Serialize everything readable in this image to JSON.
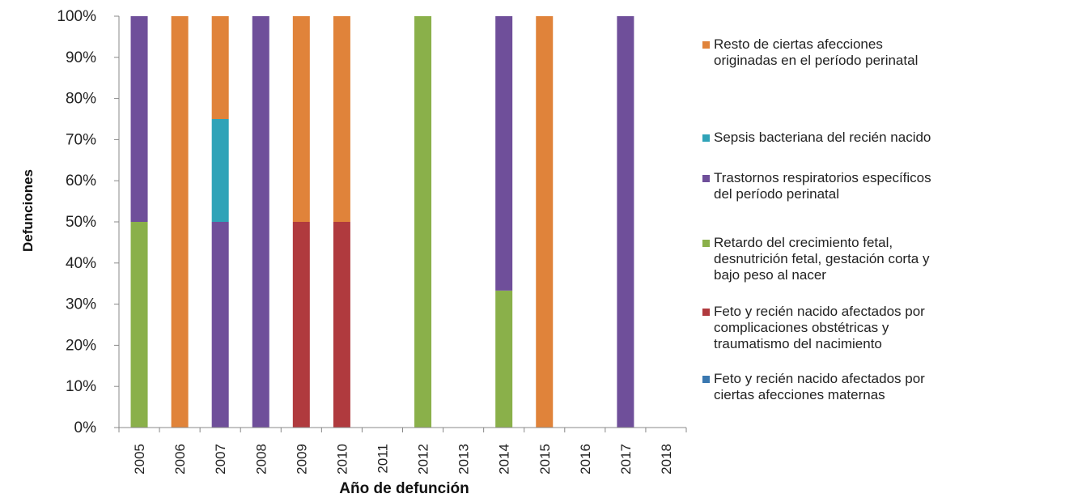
{
  "chart_data": {
    "type": "bar",
    "stacked": true,
    "percent": true,
    "xlabel": "Año de defunción",
    "ylabel": "Defunciones",
    "ylim": [
      0,
      100
    ],
    "yticks": [
      "0%",
      "10%",
      "20%",
      "30%",
      "40%",
      "50%",
      "60%",
      "70%",
      "80%",
      "90%",
      "100%"
    ],
    "categories": [
      "2005",
      "2006",
      "2007",
      "2008",
      "2009",
      "2010",
      "2011",
      "2012",
      "2013",
      "2014",
      "2015",
      "2016",
      "2017",
      "2018"
    ],
    "series": [
      {
        "name": "Feto y recién nacido afectados por ciertas afecciones maternas",
        "color": "#3a78b0",
        "values": [
          0,
          0,
          0,
          0,
          0,
          0,
          0,
          0,
          0,
          0,
          0,
          0,
          0,
          0
        ]
      },
      {
        "name": "Feto y recién nacido afectados por complicaciones obstétricas y traumatismo del nacimiento",
        "color": "#b03a3e",
        "values": [
          0,
          0,
          0,
          0,
          50,
          50,
          0,
          0,
          0,
          0,
          0,
          0,
          0,
          0
        ]
      },
      {
        "name": "Retardo del crecimiento fetal, desnutrición fetal, gestación corta y bajo peso al nacer",
        "color": "#8ab04a",
        "values": [
          50,
          0,
          0,
          0,
          0,
          0,
          0,
          100,
          0,
          33.3,
          0,
          0,
          0,
          0
        ]
      },
      {
        "name": "Trastornos respiratorios específicos del período perinatal",
        "color": "#6f4f9a",
        "values": [
          50,
          0,
          50,
          100,
          0,
          0,
          0,
          0,
          0,
          66.7,
          0,
          0,
          100,
          0
        ]
      },
      {
        "name": "Sepsis bacteriana del recién nacido",
        "color": "#2fa3b8",
        "values": [
          0,
          0,
          25,
          0,
          0,
          0,
          0,
          0,
          0,
          0,
          0,
          0,
          0,
          0
        ]
      },
      {
        "name": "Resto de ciertas afecciones originadas en el período perinatal",
        "color": "#e0833a",
        "values": [
          0,
          100,
          25,
          0,
          50,
          50,
          0,
          0,
          0,
          0,
          100,
          0,
          0,
          0
        ]
      }
    ],
    "grid": false,
    "legend_position": "right"
  },
  "legend": {
    "items": [
      {
        "lines": [
          "Resto de ciertas afecciones",
          "originadas en el período perinatal"
        ],
        "color": "#e0833a"
      },
      {
        "lines": [
          "Sepsis bacteriana del recién nacido"
        ],
        "color": "#2fa3b8"
      },
      {
        "lines": [
          "Trastornos respiratorios específicos",
          "del período perinatal"
        ],
        "color": "#6f4f9a"
      },
      {
        "lines": [
          "Retardo del crecimiento fetal,",
          "desnutrición fetal, gestación corta y",
          "bajo peso al nacer"
        ],
        "color": "#8ab04a"
      },
      {
        "lines": [
          "Feto y recién nacido afectados por",
          "complicaciones obstétricas y",
          "traumatismo del nacimiento"
        ],
        "color": "#b03a3e"
      },
      {
        "lines": [
          "Feto y recién nacido afectados por",
          "ciertas afecciones maternas"
        ],
        "color": "#3a78b0"
      }
    ]
  }
}
